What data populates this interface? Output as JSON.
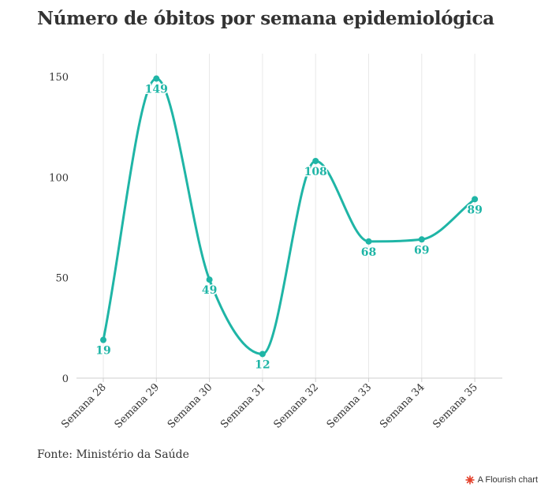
{
  "header": {
    "title": "Número de óbitos por semana epidemiológica"
  },
  "chart_data": {
    "type": "line",
    "title": "Número de óbitos por semana epidemiológica",
    "categories": [
      "Semana 28",
      "Semana 29",
      "Semana 30",
      "Semana 31",
      "Semana 32",
      "Semana 33",
      "Semana 34",
      "Semana 35"
    ],
    "series": [
      {
        "values": [
          19,
          149,
          49,
          12,
          108,
          68,
          69,
          89
        ],
        "color": "#1fb5a6"
      }
    ],
    "data_labels": [
      "19",
      "149",
      "49",
      "12",
      "108",
      "68",
      "69",
      "89"
    ],
    "y_ticks": [
      0,
      50,
      100,
      150
    ],
    "y_tick_labels": [
      "0",
      "50",
      "100",
      "150"
    ],
    "ylim": [
      0,
      160
    ],
    "xlabel": "",
    "ylabel": "",
    "grid": "vertical",
    "line_style": "smooth"
  },
  "footer": {
    "source": "Fonte: Ministério da Saúde",
    "credit": "A Flourish chart",
    "credit_color": "#e4432d"
  }
}
